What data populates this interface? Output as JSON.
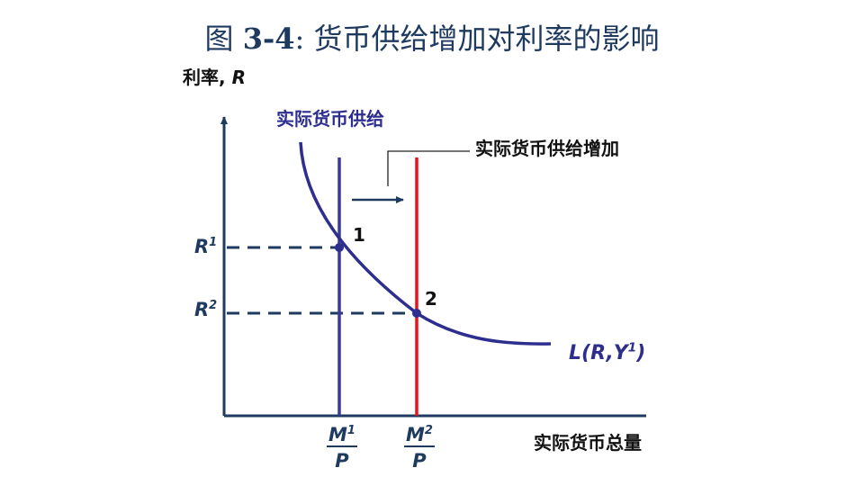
{
  "title": {
    "prefix": "图 ",
    "number": "3-4",
    "text": ": 货币供给增加对利率的影响"
  },
  "axes": {
    "y_label_text": "利率, ",
    "y_label_symbol": "R",
    "x_label": "实际货币总量"
  },
  "labels": {
    "supply_label": "实际货币供给",
    "supply_increase_label": "实际货币供给增加",
    "r1": {
      "base": "R",
      "sup": "1"
    },
    "r2": {
      "base": "R",
      "sup": "2"
    },
    "point1": "1",
    "point2": "2",
    "demand": {
      "pre": "L(",
      "r": "R",
      "comma": ",",
      "y": "Y",
      "sup": "1",
      "post": ")"
    },
    "m1": {
      "base": "M",
      "sup": "1",
      "den": "P"
    },
    "m2": {
      "base": "M",
      "sup": "2",
      "den": "P"
    }
  },
  "colors": {
    "title": "#1f3a5f",
    "axis": "#1f3a5f",
    "curve": "#2e2e8f",
    "supply_1": "#3a3a99",
    "supply_2": "#e8141c",
    "dashed": "#1f3a5f",
    "label_blue": "#2e2e8f"
  }
}
